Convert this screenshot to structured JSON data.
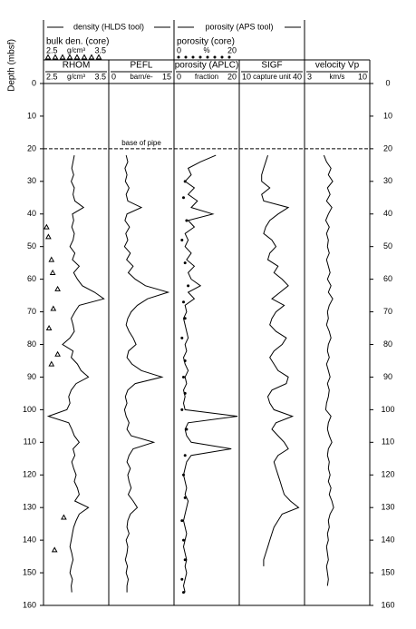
{
  "chart_data": {
    "type": "well-log",
    "y_label": "Depth (mbsf)",
    "ylim": [
      0,
      160
    ],
    "yticks": [
      0,
      10,
      20,
      30,
      40,
      50,
      60,
      70,
      80,
      90,
      100,
      110,
      120,
      130,
      140,
      150,
      160
    ],
    "groups": [
      "density (HLDS tool)",
      "porosity (APS tool)"
    ],
    "annotation": {
      "text": "base of pipe",
      "depth": 20
    },
    "color": "#000000",
    "depth": [
      22,
      24,
      26,
      28,
      30,
      32,
      34,
      36,
      38,
      40,
      42,
      44,
      46,
      48,
      50,
      52,
      54,
      56,
      58,
      60,
      62,
      64,
      66,
      68,
      70,
      72,
      74,
      76,
      78,
      80,
      82,
      84,
      86,
      88,
      90,
      92,
      94,
      96,
      98,
      100,
      102,
      104,
      106,
      108,
      110,
      112,
      114,
      116,
      118,
      120,
      122,
      124,
      126,
      128,
      130,
      132,
      134,
      136,
      138,
      140,
      142,
      144,
      146,
      148,
      150,
      152,
      154,
      156
    ],
    "tracks": [
      {
        "name": "RHOM",
        "unit": "g/cm³",
        "xlim": [
          2.5,
          3.5
        ],
        "xticks": [
          2.5,
          3.5
        ],
        "values": [
          2.97,
          2.95,
          2.93,
          2.96,
          2.92,
          2.97,
          2.95,
          2.98,
          3.12,
          2.94,
          2.96,
          2.93,
          2.97,
          2.95,
          2.9,
          2.98,
          2.94,
          3.05,
          2.96,
          3.02,
          3.1,
          3.3,
          3.45,
          3.05,
          2.98,
          2.92,
          2.95,
          2.97,
          2.9,
          2.78,
          2.95,
          2.92,
          3.02,
          3.08,
          3.2,
          3.0,
          2.92,
          2.88,
          2.9,
          2.85,
          2.55,
          2.88,
          2.93,
          2.97,
          3.05,
          2.95,
          2.98,
          2.93,
          2.96,
          3.0,
          2.97,
          3.02,
          3.05,
          2.98,
          3.2,
          3.05,
          3.0,
          2.96,
          2.94,
          2.92,
          2.9,
          2.93,
          2.95,
          2.92,
          2.9,
          2.94,
          2.92,
          2.93
        ],
        "core": {
          "name": "bulk den. (core)",
          "unit": "g/cm³",
          "xlim": [
            2.5,
            3.5
          ],
          "xticks": [
            2.5,
            3.5
          ],
          "marker": "triangle",
          "depth": [
            44,
            47,
            54,
            58,
            63,
            69,
            75,
            83,
            86,
            133,
            143
          ],
          "values": [
            2.52,
            2.55,
            2.6,
            2.62,
            2.7,
            2.63,
            2.56,
            2.7,
            2.6,
            2.8,
            2.65
          ]
        }
      },
      {
        "name": "PEFL",
        "unit": "barn/e-",
        "xlim": [
          0,
          15
        ],
        "xticks": [
          0,
          15
        ],
        "values": [
          3.8,
          4.2,
          3.5,
          4.0,
          3.6,
          4.5,
          3.8,
          4.2,
          7.5,
          4.0,
          3.5,
          4.6,
          3.7,
          4.2,
          3.4,
          4.8,
          3.9,
          5.5,
          4.3,
          6.0,
          8.5,
          14,
          9,
          6.5,
          5,
          4.2,
          3.8,
          4.5,
          5.5,
          6.2,
          4.4,
          4.0,
          5.2,
          7.5,
          12.5,
          6.0,
          4.2,
          3.6,
          4.0,
          3.4,
          3.8,
          4.5,
          4.0,
          5.0,
          10.5,
          5.5,
          4.5,
          4.0,
          4.8,
          4.2,
          4.5,
          5.0,
          4.3,
          5.5,
          6.5,
          4.8,
          4.2,
          4.0,
          4.5,
          3.8,
          4.2,
          4.0,
          3.6,
          4.1,
          3.8,
          4.3,
          4.0,
          4.0
        ]
      },
      {
        "name": "porosity (APLC)",
        "unit": "fraction",
        "xlim": [
          0,
          20
        ],
        "xticks": [
          0,
          20
        ],
        "values": [
          13,
          8,
          4,
          5,
          3,
          6,
          4,
          7,
          5,
          12,
          4,
          6,
          3,
          4,
          3,
          5,
          3.5,
          6,
          4,
          5,
          8,
          4,
          6,
          3,
          3.5,
          2.5,
          3,
          3.5,
          4,
          3,
          3.5,
          2.5,
          3,
          4,
          3,
          3.5,
          2.5,
          3,
          2.5,
          3,
          20,
          4,
          3,
          3.5,
          5,
          18,
          5,
          3.5,
          3,
          2.5,
          3,
          3.5,
          3,
          4,
          3.5,
          3,
          2.5,
          3,
          3.5,
          3,
          2.5,
          3,
          3.5,
          3,
          3.5,
          3,
          2.5,
          3
        ],
        "core": {
          "name": "porosity (core)",
          "unit": "%",
          "xlim": [
            0,
            20
          ],
          "xticks": [
            0,
            20
          ],
          "marker": "dot",
          "depth": [
            30,
            35,
            42,
            48,
            55,
            62,
            67,
            72,
            78,
            85,
            90,
            95,
            100,
            106,
            114,
            120,
            127,
            134,
            140,
            146,
            152,
            156
          ],
          "values": [
            3,
            2.5,
            3.5,
            2,
            3,
            4,
            2.5,
            3,
            2,
            3,
            2.5,
            3,
            2,
            3.5,
            3,
            2.5,
            3,
            2,
            2.5,
            3,
            2,
            2.5
          ]
        }
      },
      {
        "name": "SIGF",
        "unit": "capture unit",
        "xlim": [
          10,
          40
        ],
        "xticks": [
          10,
          40
        ],
        "values": [
          23,
          22,
          21,
          20,
          20,
          24,
          20,
          21,
          33,
          28,
          24,
          22,
          21,
          25,
          27,
          24,
          23,
          28,
          26,
          30,
          33,
          29,
          25,
          31,
          27,
          25,
          24,
          27,
          32,
          30,
          26,
          24,
          26,
          28,
          33,
          32,
          25,
          23,
          24,
          26,
          35,
          27,
          25,
          28,
          31,
          33,
          28,
          26,
          27,
          28,
          29,
          30,
          31,
          34,
          38,
          30,
          28,
          26,
          25,
          24,
          23,
          22,
          21,
          21,
          null,
          null,
          null,
          null
        ]
      },
      {
        "name": "velocity Vp",
        "unit": "km/s",
        "xlim": [
          3,
          10
        ],
        "xticks": [
          3,
          10
        ],
        "values": [
          5.0,
          5.3,
          5.8,
          5.5,
          6.0,
          5.4,
          5.7,
          5.3,
          5.9,
          5.5,
          5.2,
          5.6,
          5.3,
          5.5,
          5.4,
          5.6,
          5.3,
          5.5,
          5.7,
          5.4,
          5.8,
          5.5,
          6.0,
          5.6,
          5.4,
          5.5,
          5.3,
          5.6,
          5.8,
          5.5,
          5.4,
          5.6,
          5.3,
          5.5,
          5.7,
          5.4,
          5.6,
          5.5,
          5.3,
          5.2,
          5.8,
          5.5,
          5.4,
          5.6,
          5.9,
          5.5,
          5.4,
          5.6,
          5.5,
          5.7,
          5.5,
          5.8,
          5.6,
          5.9,
          6.1,
          5.7,
          5.5,
          5.6,
          5.4,
          5.5,
          5.3,
          5.4,
          5.5,
          5.3,
          5.4,
          5.5,
          5.4,
          null
        ]
      }
    ]
  }
}
